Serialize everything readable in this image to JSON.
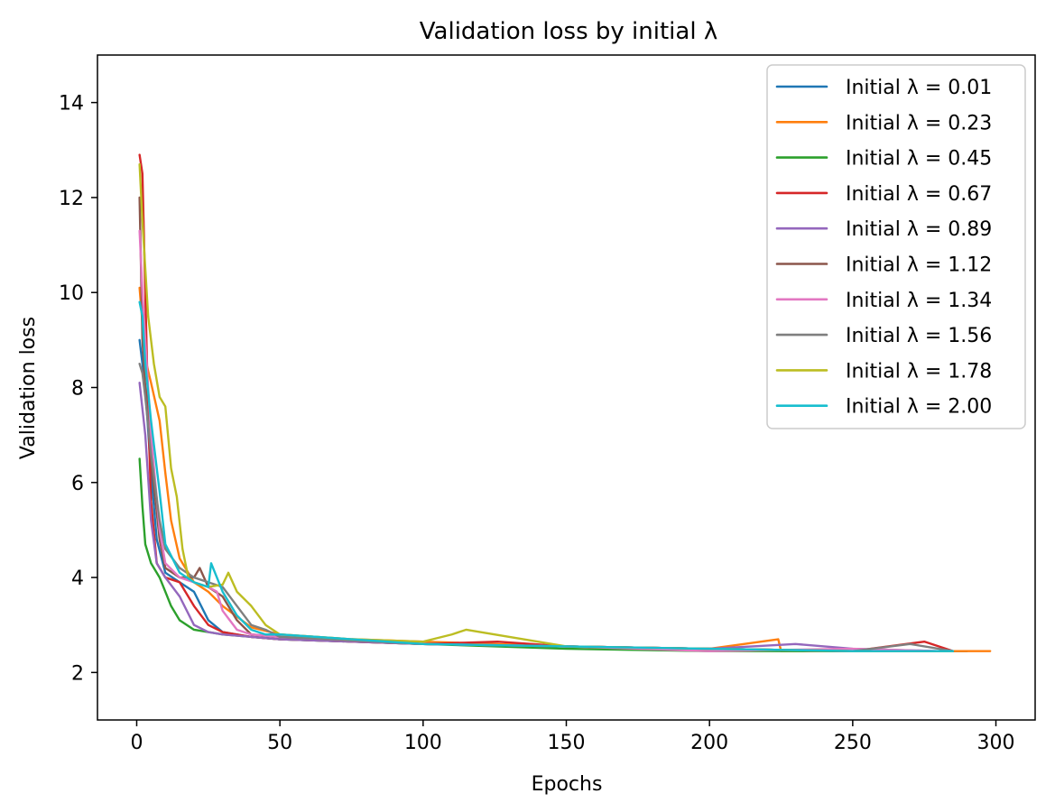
{
  "chart_data": {
    "type": "line",
    "title": "Validation loss by initial λ",
    "xlabel": "Epochs",
    "ylabel": "Validation loss",
    "xlim": [
      -13.7,
      313.7
    ],
    "ylim": [
      1.0,
      15.0
    ],
    "xticks": [
      0,
      50,
      100,
      150,
      200,
      250,
      300
    ],
    "yticks": [
      2,
      4,
      6,
      8,
      10,
      12,
      14
    ],
    "xtick_labels": [
      "0",
      "50",
      "100",
      "150",
      "200",
      "250",
      "300"
    ],
    "ytick_labels": [
      "2",
      "4",
      "6",
      "8",
      "10",
      "12",
      "14"
    ],
    "legend_position": "top-right",
    "grid": false,
    "series": [
      {
        "name": "Initial λ = 0.01",
        "color": "#1f77b4",
        "x": [
          1,
          3,
          5,
          7,
          10,
          15,
          20,
          25,
          30,
          40,
          50,
          75,
          100,
          150,
          200,
          250,
          290
        ],
        "values": [
          9.0,
          8.0,
          6.2,
          4.8,
          4.1,
          3.9,
          3.7,
          3.1,
          2.85,
          2.75,
          2.7,
          2.65,
          2.6,
          2.55,
          2.5,
          2.45,
          2.45
        ]
      },
      {
        "name": "Initial λ = 0.23",
        "color": "#ff7f0e",
        "x": [
          1,
          3,
          5,
          8,
          10,
          12,
          15,
          20,
          25,
          30,
          40,
          50,
          75,
          100,
          150,
          200,
          224,
          225,
          250,
          298
        ],
        "values": [
          10.1,
          8.6,
          8.1,
          7.3,
          6.2,
          5.2,
          4.4,
          3.9,
          3.7,
          3.4,
          2.95,
          2.8,
          2.7,
          2.65,
          2.55,
          2.5,
          2.7,
          2.45,
          2.45,
          2.45
        ]
      },
      {
        "name": "Initial λ = 0.45",
        "color": "#2ca02c",
        "x": [
          1,
          2,
          3,
          5,
          8,
          10,
          12,
          15,
          20,
          25,
          30,
          50,
          100,
          150,
          200,
          250,
          285
        ],
        "values": [
          6.5,
          5.5,
          4.7,
          4.3,
          4.0,
          3.7,
          3.4,
          3.1,
          2.9,
          2.85,
          2.8,
          2.7,
          2.6,
          2.5,
          2.45,
          2.45,
          2.45
        ]
      },
      {
        "name": "Initial λ = 0.67",
        "color": "#d62728",
        "x": [
          1,
          2,
          3,
          4,
          5,
          7,
          10,
          15,
          20,
          25,
          30,
          40,
          50,
          75,
          100,
          126,
          150,
          200,
          250,
          275,
          285
        ],
        "values": [
          12.9,
          12.5,
          10.0,
          7.5,
          5.6,
          4.3,
          4.0,
          3.9,
          3.4,
          3.0,
          2.85,
          2.75,
          2.7,
          2.65,
          2.6,
          2.65,
          2.55,
          2.5,
          2.45,
          2.65,
          2.45
        ]
      },
      {
        "name": "Initial λ = 0.89",
        "color": "#9467bd",
        "x": [
          1,
          3,
          5,
          7,
          10,
          15,
          20,
          25,
          30,
          50,
          100,
          150,
          200,
          230,
          250,
          280
        ],
        "values": [
          8.1,
          7.0,
          5.2,
          4.3,
          4.0,
          3.6,
          3.0,
          2.85,
          2.8,
          2.7,
          2.6,
          2.55,
          2.5,
          2.6,
          2.5,
          2.45
        ]
      },
      {
        "name": "Initial λ = 1.12",
        "color": "#8c564b",
        "x": [
          1,
          2,
          3,
          5,
          8,
          10,
          15,
          20,
          22,
          25,
          30,
          35,
          40,
          50,
          100,
          150,
          200,
          250,
          280
        ],
        "values": [
          12.0,
          9.0,
          8.0,
          6.5,
          4.8,
          4.2,
          4.0,
          4.0,
          4.2,
          3.8,
          3.6,
          3.1,
          2.8,
          2.75,
          2.6,
          2.55,
          2.5,
          2.45,
          2.45
        ]
      },
      {
        "name": "Initial λ = 1.34",
        "color": "#e377c2",
        "x": [
          1,
          2,
          3,
          5,
          8,
          10,
          15,
          20,
          25,
          28,
          30,
          35,
          40,
          50,
          100,
          150,
          200,
          250,
          280
        ],
        "values": [
          11.3,
          10.0,
          9.0,
          7.0,
          5.0,
          4.3,
          4.0,
          3.9,
          3.8,
          3.7,
          3.3,
          2.9,
          2.8,
          2.75,
          2.6,
          2.55,
          2.45,
          2.5,
          2.45
        ]
      },
      {
        "name": "Initial λ = 1.56",
        "color": "#7f7f7f",
        "x": [
          1,
          2,
          3,
          5,
          8,
          10,
          15,
          20,
          25,
          30,
          35,
          40,
          45,
          50,
          100,
          150,
          200,
          250,
          270,
          285
        ],
        "values": [
          8.5,
          8.3,
          7.8,
          6.6,
          5.2,
          4.6,
          4.2,
          4.0,
          3.9,
          3.8,
          3.4,
          3.0,
          2.9,
          2.75,
          2.6,
          2.55,
          2.5,
          2.45,
          2.6,
          2.45
        ]
      },
      {
        "name": "Initial λ = 1.78",
        "color": "#bcbd22",
        "x": [
          1,
          2,
          3,
          4,
          6,
          8,
          10,
          12,
          14,
          16,
          18,
          20,
          25,
          30,
          32,
          35,
          40,
          45,
          50,
          75,
          100,
          110,
          115,
          150,
          200,
          250,
          285
        ],
        "values": [
          12.7,
          11.5,
          10.5,
          9.5,
          8.5,
          7.8,
          7.6,
          6.3,
          5.7,
          4.6,
          4.0,
          3.9,
          3.8,
          3.85,
          4.1,
          3.7,
          3.4,
          3.0,
          2.8,
          2.7,
          2.65,
          2.8,
          2.9,
          2.55,
          2.5,
          2.45,
          2.45
        ]
      },
      {
        "name": "Initial λ = 2.00",
        "color": "#17becf",
        "x": [
          1,
          2,
          3,
          5,
          8,
          10,
          15,
          20,
          25,
          26,
          30,
          35,
          40,
          45,
          50,
          100,
          150,
          200,
          250,
          285
        ],
        "values": [
          9.8,
          9.5,
          8.5,
          7.3,
          5.8,
          4.7,
          4.1,
          3.9,
          3.8,
          4.3,
          3.7,
          3.2,
          2.9,
          2.8,
          2.8,
          2.6,
          2.55,
          2.5,
          2.45,
          2.45
        ]
      }
    ]
  }
}
